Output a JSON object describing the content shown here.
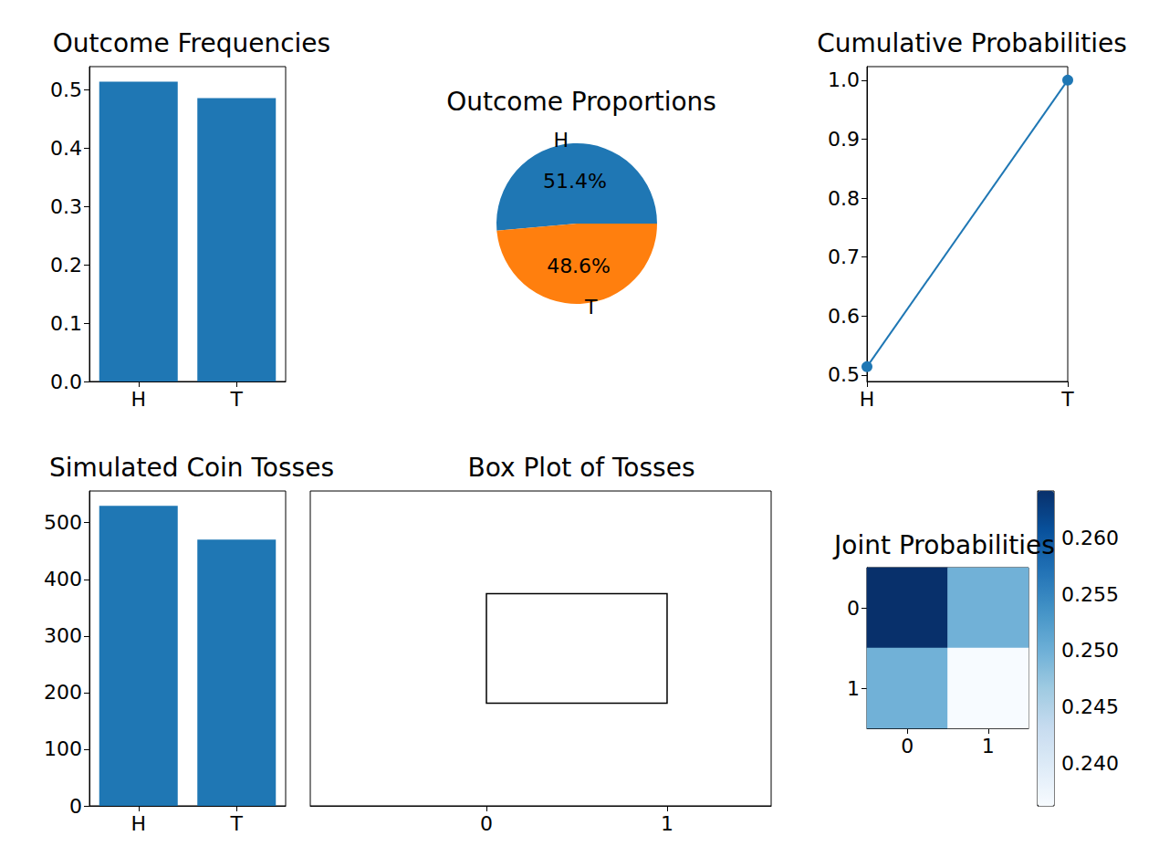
{
  "chart_data": [
    {
      "type": "bar",
      "title": "Outcome Frequencies",
      "categories": [
        "H",
        "T"
      ],
      "values": [
        0.514,
        0.486
      ],
      "color": "#1f77b4",
      "ylim": [
        0,
        0.54
      ],
      "yticks": [
        {
          "value": 0,
          "label": "0.0"
        },
        0.1,
        0.2,
        0.3,
        0.4,
        0.5
      ]
    },
    {
      "type": "pie",
      "title": "Outcome Proportions",
      "categories": [
        "H",
        "T"
      ],
      "values": [
        51.4,
        48.6
      ],
      "value_labels": [
        "51.4%",
        "48.6%"
      ],
      "colors": [
        "#1f77b4",
        "#ff7f0e"
      ],
      "data_labels": true
    },
    {
      "type": "line",
      "title": "Cumulative Probabilities",
      "categories": [
        "H",
        "T"
      ],
      "values": [
        0.514,
        1.0
      ],
      "color": "#1f77b4",
      "marker": "o",
      "line_style": "solid",
      "ylim": [
        0.489,
        1.023
      ],
      "yticks": [
        0.5,
        0.6,
        0.7,
        0.8,
        0.9,
        {
          "value": 1,
          "label": "1.0"
        }
      ]
    },
    {
      "type": "bar",
      "title": "Simulated Coin Tosses",
      "categories": [
        "H",
        "T"
      ],
      "values": [
        530,
        470
      ],
      "color": "#1f77b4",
      "ylim": [
        0,
        556
      ],
      "yticks": [
        0,
        100,
        200,
        300,
        400,
        500
      ]
    },
    {
      "type": "boxplot",
      "title": "Box Plot of Tosses",
      "orientation": "horizontal",
      "values": [
        0,
        0,
        1,
        1,
        1
      ],
      "xlim": [
        -0.975,
        1.576
      ],
      "xticks": [
        0,
        1
      ],
      "tick_labels": "x"
    },
    {
      "type": "heatmap",
      "title": "Joint Probabilities",
      "values": [
        [
          0.2642,
          0.2498
        ],
        [
          0.2498,
          0.2362
        ]
      ],
      "color": "Blues",
      "xticks": [
        0,
        1
      ],
      "yticks": [
        0,
        1
      ],
      "colorbar_range": [
        0.2362,
        0.2642
      ],
      "colorbar_ticks": [
        {
          "value": 0.24,
          "label": "0.240"
        },
        {
          "value": 0.245,
          "label": "0.245"
        },
        {
          "value": 0.25,
          "label": "0.250"
        },
        {
          "value": 0.255,
          "label": "0.255"
        },
        {
          "value": 0.26,
          "label": "0.260"
        }
      ]
    }
  ]
}
